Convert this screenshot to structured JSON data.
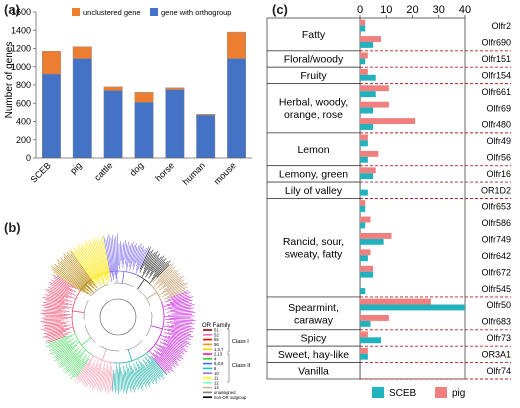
{
  "panels": {
    "a": "(a)",
    "b": "(b)",
    "c": "(c)"
  },
  "colors": {
    "orange": "#ec7d31",
    "blue": "#4472c4",
    "sceb": "#21b2bd",
    "pig": "#f08080",
    "dashed": "#b22222"
  },
  "chart_data": [
    {
      "type": "bar",
      "stacked": true,
      "ylabel": "Number of genes",
      "ylim": [
        0,
        1600
      ],
      "yticks": [
        0,
        200,
        400,
        600,
        800,
        1000,
        1200,
        1400,
        1600
      ],
      "categories": [
        "SCEB",
        "pig",
        "cattle",
        "dog",
        "horse",
        "human",
        "mouse"
      ],
      "series": [
        {
          "name": "gene with orthogroup",
          "color": "#4472c4",
          "values": [
            920,
            1090,
            740,
            610,
            750,
            470,
            1090
          ]
        },
        {
          "name": "unclustered gene",
          "color": "#ec7d31",
          "values": [
            250,
            130,
            40,
            110,
            20,
            10,
            290
          ]
        }
      ],
      "legend": [
        "unclustered gene",
        "gene with orthogroup"
      ],
      "legend_position": "top"
    },
    {
      "type": "phylogenetic-tree",
      "legend_title": "OR Family",
      "class_labels": [
        "Class I",
        "Class II"
      ],
      "families": [
        "51",
        "52",
        "55",
        "56",
        "1,3,7",
        "2,13",
        "4",
        "5,8,9",
        "6",
        "10",
        "11",
        "12",
        "14",
        "unassigned",
        "non-OR outgroup"
      ],
      "family_colors": [
        "#8b0000",
        "#ff69b4",
        "#ff0000",
        "#ff8c00",
        "#ffd700",
        "#ff1493",
        "#32cd32",
        "#4169e1",
        "#00ced1",
        "#9370db",
        "#ffff00",
        "#7fffd4",
        "#d2b48c",
        "#808080",
        "#000000"
      ]
    },
    {
      "type": "bar",
      "orientation": "horizontal",
      "xlim": [
        0,
        40
      ],
      "xticks": [
        0,
        10,
        20,
        30,
        40
      ],
      "series_names": [
        "SCEB",
        "pig"
      ],
      "legend_position": "bottom",
      "genes": [
        "Olfr2",
        "Olfr690",
        "Olfr151",
        "Olfr154",
        "Olfr661",
        "Olfr69",
        "Olfr480",
        "Olfr49",
        "Olfr56",
        "Olfr16",
        "OR1D2",
        "Olfr653",
        "Olfr586",
        "Olfr749",
        "Olfr642",
        "Olfr672",
        "Olfr545",
        "Olfr50",
        "Olfr683",
        "Olfr73",
        "OR3A1",
        "Olfr74"
      ],
      "sceb": [
        2,
        5,
        2,
        6,
        6,
        5,
        5,
        3,
        3,
        5,
        3,
        2,
        2,
        9,
        3,
        5,
        2,
        40,
        4,
        8,
        3,
        0
      ],
      "pig": [
        2,
        8,
        3,
        3,
        11,
        11,
        21,
        3,
        7,
        6,
        0,
        2,
        4,
        12,
        4,
        5,
        0,
        27,
        11,
        3,
        3,
        0
      ],
      "odor_groups": [
        {
          "name": "Fatty",
          "rows": [
            0,
            1
          ]
        },
        {
          "name": "Floral/woody",
          "rows": [
            2
          ]
        },
        {
          "name": "Fruity",
          "rows": [
            3
          ]
        },
        {
          "name": "Herbal, woody, orange, rose",
          "rows": [
            4,
            6
          ]
        },
        {
          "name": "Lemon",
          "rows": [
            7,
            8
          ]
        },
        {
          "name": "Lemony, green",
          "rows": [
            9
          ]
        },
        {
          "name": "Lily of valley",
          "rows": [
            10
          ]
        },
        {
          "name": "Rancid, sour, sweaty, fatty",
          "rows": [
            11,
            16
          ]
        },
        {
          "name": "Spearmint, caraway",
          "rows": [
            17,
            18
          ]
        },
        {
          "name": "Spicy",
          "rows": [
            19
          ]
        },
        {
          "name": "Sweet, hay-like",
          "rows": [
            20
          ]
        },
        {
          "name": "Vanilla",
          "rows": [
            21
          ]
        }
      ]
    }
  ]
}
